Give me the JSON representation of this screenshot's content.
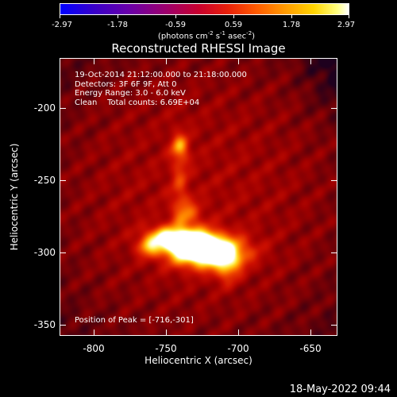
{
  "colorbar": {
    "ticks": [
      "-2.97",
      "-1.78",
      "-0.59",
      "0.59",
      "1.78",
      "2.97"
    ],
    "units_text": "(photons cm",
    "units_sup1": "-2",
    "units_mid": " s",
    "units_sup2": "-1",
    "units_mid2": " asec",
    "units_sup3": "-2",
    "units_end": ")"
  },
  "title": "Reconstructed RHESSI Image",
  "info": {
    "line1": "19-Oct-2014 21:12:00.000 to 21:18:00.000",
    "line2": "Detectors: 3F 6F 9F, Att 0",
    "line3": "Energy Range: 3.0 - 6.0 keV",
    "line4": "Clean    Total counts: 6.69E+04"
  },
  "peak": "Position of Peak = [-716,-301]",
  "axes": {
    "xlabel": "Heliocentric X (arcsec)",
    "ylabel": "Heliocentric Y (arcsec)",
    "xticks": [
      "-800",
      "-750",
      "-700",
      "-650"
    ],
    "yticks": [
      "-200",
      "-250",
      "-300",
      "-350"
    ],
    "xtick_values": [
      -800,
      -750,
      -700,
      -650
    ],
    "ytick_values": [
      -200,
      -250,
      -300,
      -350
    ],
    "xlim": [
      -823,
      -630
    ],
    "ylim": [
      -360,
      -168
    ]
  },
  "timestamp": "18-May-2022 09:44"
}
